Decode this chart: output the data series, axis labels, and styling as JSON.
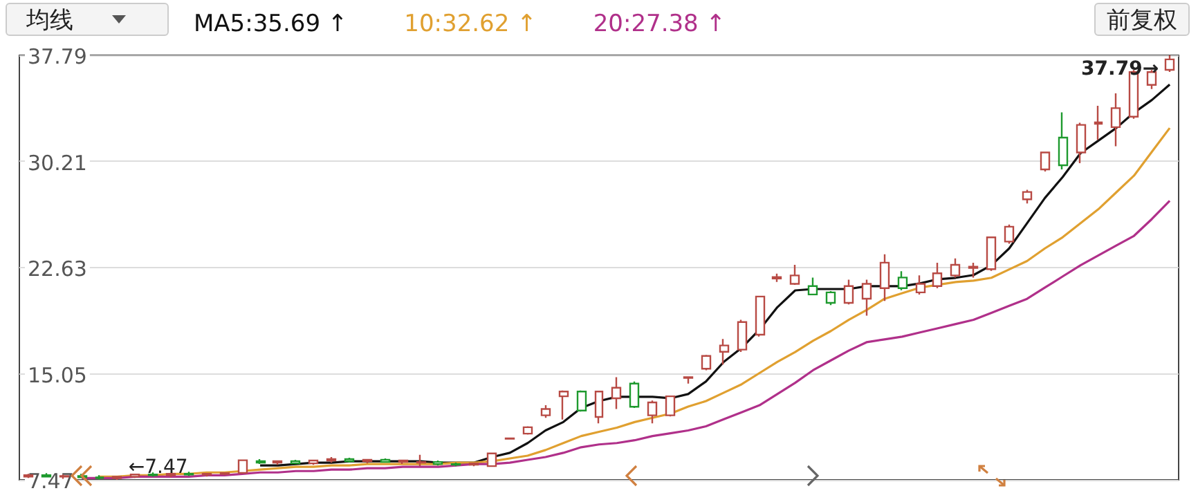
{
  "chart_data": {
    "type": "candlestick",
    "categories": [
      null,
      null,
      null,
      null,
      null,
      null,
      null,
      null,
      null,
      null,
      null,
      null,
      null,
      null,
      null,
      null,
      null,
      null,
      null,
      null,
      null,
      null,
      null,
      null,
      null,
      null,
      null,
      null,
      null,
      null,
      null,
      null,
      null,
      null,
      null,
      null,
      null,
      null,
      null,
      null,
      null,
      null,
      null,
      null,
      null,
      null,
      null,
      null,
      null,
      null,
      null,
      null,
      null,
      null,
      null,
      null,
      null,
      null,
      null,
      null,
      null,
      null,
      null,
      null,
      null
    ],
    "colors": [
      "#b84a44",
      "#1e9a2e",
      "#b84a44",
      "#1e9a2e",
      "#1e9a2e",
      "#b84a44",
      "#b84a44",
      "#1e9a2e",
      "#b84a44",
      "#1e9a2e",
      "#b84a44",
      "#b84a44",
      "#b84a44",
      "#1e9a2e",
      "#b84a44",
      "#1e9a2e",
      "#b84a44",
      "#b84a44",
      "#1e9a2e",
      "#b84a44",
      "#1e9a2e",
      "#b84a44",
      "#b84a44",
      "#1e9a2e",
      "#1e9a2e",
      "#b84a44",
      "#b84a44",
      "#b84a44",
      "#b84a44",
      "#b84a44",
      "#b84a44",
      "#1e9a2e",
      "#b84a44",
      "#b84a44",
      "#1e9a2e",
      "#b84a44",
      "#b84a44",
      "#b84a44",
      "#b84a44",
      "#b84a44",
      "#b84a44",
      "#b84a44",
      "#b84a44",
      "#b84a44",
      "#1e9a2e",
      "#1e9a2e",
      "#b84a44",
      "#b84a44",
      "#b84a44",
      "#1e9a2e",
      "#b84a44",
      "#b84a44",
      "#b84a44",
      "#b84a44",
      "#b84a44",
      "#b84a44",
      "#b84a44",
      "#b84a44",
      "#1e9a2e",
      "#b84a44",
      "#b84a44",
      "#b84a44",
      "#b84a44",
      "#b84a44",
      "#b84a44"
    ],
    "ohlc": [
      [
        7.7,
        7.9,
        7.6,
        7.8
      ],
      [
        7.8,
        7.95,
        7.65,
        7.7
      ],
      [
        7.7,
        7.85,
        7.55,
        7.75
      ],
      [
        7.75,
        7.9,
        7.6,
        7.65
      ],
      [
        7.65,
        7.8,
        7.5,
        7.6
      ],
      [
        7.6,
        7.75,
        7.47,
        7.7
      ],
      [
        7.7,
        7.9,
        7.6,
        7.85
      ],
      [
        7.85,
        8.0,
        7.7,
        7.8
      ],
      [
        7.8,
        7.95,
        7.65,
        7.9
      ],
      [
        7.9,
        8.05,
        7.75,
        7.85
      ],
      [
        7.85,
        7.95,
        7.7,
        7.9
      ],
      [
        7.9,
        8.0,
        7.8,
        7.95
      ],
      [
        7.97,
        8.9,
        7.9,
        8.87
      ],
      [
        8.8,
        8.95,
        8.6,
        8.7
      ],
      [
        8.7,
        8.85,
        8.55,
        8.8
      ],
      [
        8.8,
        8.9,
        8.6,
        8.65
      ],
      [
        8.65,
        8.9,
        8.55,
        8.85
      ],
      [
        8.85,
        9.1,
        8.7,
        8.95
      ],
      [
        8.95,
        9.05,
        8.7,
        8.8
      ],
      [
        8.8,
        8.95,
        8.65,
        8.9
      ],
      [
        8.9,
        9.0,
        8.7,
        8.75
      ],
      [
        8.75,
        8.9,
        8.6,
        8.85
      ],
      [
        8.7,
        9.26,
        8.45,
        8.75
      ],
      [
        8.75,
        8.85,
        8.5,
        8.6
      ],
      [
        8.6,
        8.7,
        8.45,
        8.55
      ],
      [
        8.55,
        8.7,
        8.45,
        8.65
      ],
      [
        8.45,
        9.36,
        8.4,
        9.36
      ],
      [
        10.4,
        10.45,
        10.35,
        10.44
      ],
      [
        10.77,
        11.3,
        10.7,
        11.23
      ],
      [
        12.08,
        12.8,
        11.9,
        12.53
      ],
      [
        13.44,
        13.85,
        11.78,
        13.78
      ],
      [
        13.78,
        13.85,
        12.35,
        12.42
      ],
      [
        11.96,
        13.78,
        11.51,
        13.78
      ],
      [
        13.3,
        14.8,
        12.53,
        14.05
      ],
      [
        14.35,
        14.5,
        12.6,
        12.69
      ],
      [
        12.08,
        13.14,
        11.51,
        13.0
      ],
      [
        12.08,
        13.5,
        12.0,
        13.44
      ],
      [
        14.75,
        14.8,
        14.35,
        14.8
      ],
      [
        15.41,
        16.4,
        15.3,
        16.32
      ],
      [
        16.62,
        17.53,
        15.71,
        17.07
      ],
      [
        16.77,
        18.9,
        16.6,
        18.74
      ],
      [
        17.84,
        20.6,
        17.7,
        20.56
      ],
      [
        21.85,
        22.2,
        21.6,
        21.95
      ],
      [
        21.47,
        22.83,
        21.4,
        22.07
      ],
      [
        21.31,
        21.92,
        20.65,
        20.71
      ],
      [
        20.86,
        20.95,
        19.95,
        20.11
      ],
      [
        20.11,
        21.77,
        20.0,
        21.31
      ],
      [
        20.41,
        21.77,
        19.2,
        21.47
      ],
      [
        21.16,
        23.58,
        20.25,
        22.98
      ],
      [
        21.92,
        22.37,
        21.01,
        21.16
      ],
      [
        20.86,
        22.07,
        20.71,
        21.47
      ],
      [
        21.31,
        22.98,
        21.16,
        22.22
      ],
      [
        22.07,
        23.28,
        21.92,
        22.83
      ],
      [
        22.6,
        22.98,
        21.92,
        22.7
      ],
      [
        22.52,
        24.85,
        22.4,
        24.79
      ],
      [
        24.49,
        25.7,
        24.33,
        25.55
      ],
      [
        27.51,
        28.18,
        27.21,
        28.03
      ],
      [
        29.64,
        30.9,
        29.49,
        30.85
      ],
      [
        31.91,
        33.72,
        29.64,
        29.94
      ],
      [
        30.85,
        32.97,
        30.09,
        32.82
      ],
      [
        32.9,
        34.18,
        31.75,
        33.0
      ],
      [
        32.66,
        35.08,
        31.3,
        34.02
      ],
      [
        33.41,
        36.74,
        33.26,
        36.59
      ],
      [
        35.68,
        36.74,
        35.38,
        36.59
      ],
      [
        36.75,
        37.79,
        36.6,
        37.5
      ]
    ],
    "series": [
      {
        "name": "MA5:35.69 ↑",
        "type": "line",
        "color": "#111111",
        "values": [
          null,
          null,
          null,
          null,
          null,
          null,
          null,
          null,
          null,
          null,
          null,
          null,
          null,
          8.5,
          8.5,
          8.6,
          8.7,
          8.7,
          8.8,
          8.8,
          8.8,
          8.8,
          8.8,
          8.7,
          8.7,
          8.7,
          9.1,
          9.4,
          10.1,
          11.0,
          11.6,
          12.6,
          13.1,
          13.4,
          13.4,
          13.4,
          13.3,
          13.6,
          14.5,
          15.9,
          16.9,
          18.2,
          19.8,
          21.0,
          21.1,
          21.1,
          21.1,
          21.3,
          21.3,
          21.3,
          21.5,
          21.8,
          21.9,
          22.1,
          22.8,
          24.0,
          25.8,
          27.6,
          29.1,
          30.8,
          31.7,
          32.6,
          33.7,
          34.6,
          35.7
        ]
      },
      {
        "name": "10:32.62 ↑",
        "type": "line",
        "color": "#e0a030",
        "values": [
          null,
          null,
          null,
          null,
          7.7,
          7.7,
          7.8,
          7.8,
          7.9,
          7.9,
          8.0,
          8.0,
          8.1,
          8.2,
          8.3,
          8.4,
          8.4,
          8.5,
          8.5,
          8.6,
          8.6,
          8.6,
          8.6,
          8.6,
          8.7,
          8.7,
          8.8,
          9.0,
          9.2,
          9.6,
          10.1,
          10.6,
          10.9,
          11.2,
          11.6,
          11.9,
          12.2,
          12.7,
          13.1,
          13.7,
          14.3,
          15.1,
          15.9,
          16.6,
          17.4,
          18.1,
          18.9,
          19.6,
          20.4,
          20.8,
          21.2,
          21.4,
          21.6,
          21.7,
          21.9,
          22.5,
          23.1,
          24.0,
          24.8,
          25.8,
          26.8,
          28.0,
          29.2,
          30.9,
          32.6
        ]
      },
      {
        "name": "20:27.38 ↑",
        "type": "line",
        "color": "#b0308a",
        "values": [
          null,
          null,
          null,
          7.6,
          7.6,
          7.6,
          7.7,
          7.7,
          7.7,
          7.7,
          7.8,
          7.8,
          7.9,
          8.0,
          8.0,
          8.1,
          8.1,
          8.2,
          8.2,
          8.3,
          8.3,
          8.4,
          8.4,
          8.4,
          8.5,
          8.6,
          8.6,
          8.7,
          8.9,
          9.1,
          9.4,
          9.8,
          10.0,
          10.1,
          10.3,
          10.6,
          10.8,
          11.0,
          11.3,
          11.8,
          12.3,
          12.8,
          13.6,
          14.4,
          15.3,
          16.0,
          16.7,
          17.3,
          17.5,
          17.7,
          18.0,
          18.3,
          18.6,
          18.9,
          19.4,
          19.9,
          20.4,
          21.2,
          22.0,
          22.8,
          23.5,
          24.2,
          24.9,
          26.1,
          27.4
        ]
      }
    ],
    "ylim": [
      7.47,
      37.79
    ],
    "yticks": [
      7.47,
      15.05,
      22.63,
      30.21,
      37.79
    ],
    "grid": "y",
    "legend": "top left",
    "tick_labels": "y",
    "marker": "none",
    "annotations": [
      "均线",
      "前复权",
      "37.79→",
      {
        "text": "←7.47",
        "y": 7.47
      }
    ]
  }
}
